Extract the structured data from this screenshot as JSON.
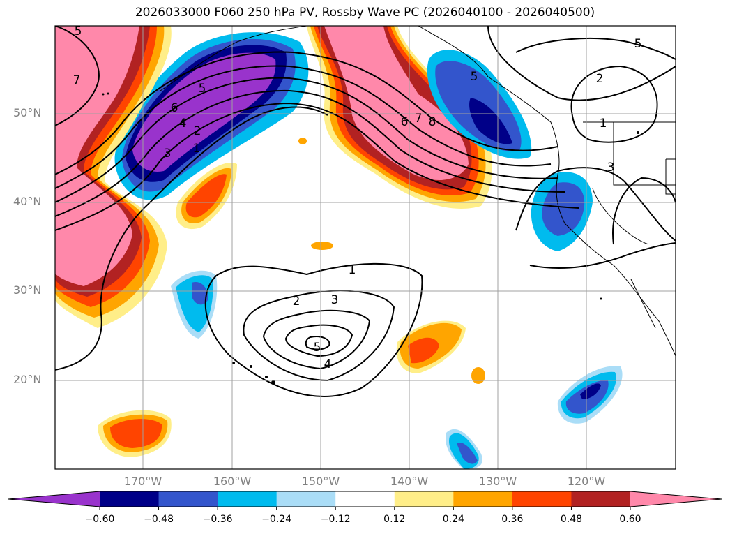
{
  "title": "2026033000 F060 250 hPa PV, Rossby Wave PC (2026040100 - 2026040500)",
  "lat_labels": [
    "50°N",
    "40°N",
    "30°N",
    "20°N"
  ],
  "lon_labels": [
    "170°W",
    "160°W",
    "150°W",
    "140°W",
    "130°W",
    "120°W"
  ],
  "colorbar": {
    "ticks": [
      "−0.60",
      "−0.48",
      "−0.36",
      "−0.24",
      "−0.12",
      "0.12",
      "0.24",
      "0.36",
      "0.48",
      "0.60"
    ],
    "colors": [
      "#9933cc",
      "#000088",
      "#3355cc",
      "#00bbee",
      "#aaddf7",
      "#ffffff",
      "#ffee88",
      "#ffa500",
      "#ff4400",
      "#b22222",
      "#ff88aa"
    ]
  },
  "contour_labels": [
    "7",
    "5",
    "6",
    "4",
    "5",
    "2",
    "3",
    "1",
    "6",
    "7",
    "8",
    "5",
    "2",
    "1",
    "3",
    "1",
    "2",
    "3",
    "5",
    "4",
    "5"
  ]
}
